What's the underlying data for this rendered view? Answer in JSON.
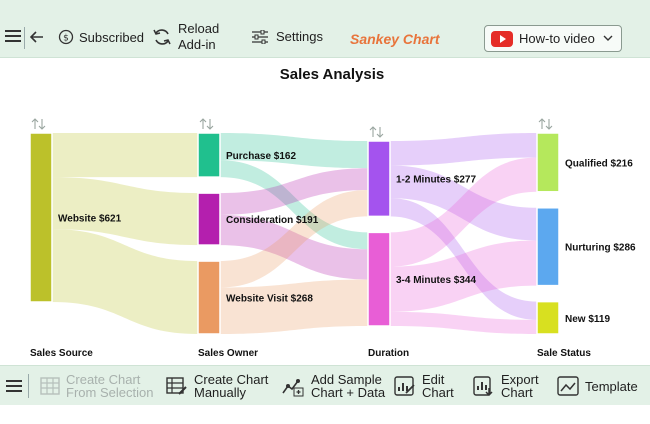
{
  "toolbar": {
    "subscribed_label": "Subscribed",
    "reload_line1": "Reload",
    "reload_line2": "Add-in",
    "settings_label": "Settings",
    "brand": "Sankey Chart",
    "howto_label": "How-to video"
  },
  "chart_data": {
    "type": "sankey",
    "title": "Sales Analysis",
    "stages": [
      "Sales Source",
      "Sales Owner",
      "Duration",
      "Sale Status"
    ],
    "nodes": [
      {
        "name": "Website",
        "value": 621,
        "label": "Website $621",
        "color": "#bcc12a"
      },
      {
        "name": "Purchase",
        "value": 162,
        "label": "Purchase $162",
        "color": "#20c08e"
      },
      {
        "name": "Consideration",
        "value": 191,
        "label": "Consideration $191",
        "color": "#b41fae"
      },
      {
        "name": "Website Visit",
        "value": 268,
        "label": "Website Visit $268",
        "color": "#ea9a62"
      },
      {
        "name": "1-2 Minutes",
        "value": 277,
        "label": "1-2 Minutes $277",
        "color": "#a453ee"
      },
      {
        "name": "3-4 Minutes",
        "value": 344,
        "label": "3-4 Minutes $344",
        "color": "#e85ed6"
      },
      {
        "name": "Qualified",
        "value": 216,
        "label": "Qualified $216",
        "color": "#b5e85c"
      },
      {
        "name": "Nurturing",
        "value": 286,
        "label": "Nurturing $286",
        "color": "#5ca8ef"
      },
      {
        "name": "New",
        "value": 119,
        "label": "New $119",
        "color": "#d8e020"
      }
    ],
    "links": [
      {
        "source": "Website",
        "target": "Purchase",
        "value": 162
      },
      {
        "source": "Website",
        "target": "Consideration",
        "value": 191
      },
      {
        "source": "Website",
        "target": "Website Visit",
        "value": 268
      },
      {
        "source": "Purchase",
        "target": "1-2 Minutes",
        "value": 100
      },
      {
        "source": "Purchase",
        "target": "3-4 Minutes",
        "value": 62
      },
      {
        "source": "Consideration",
        "target": "1-2 Minutes",
        "value": 80
      },
      {
        "source": "Consideration",
        "target": "3-4 Minutes",
        "value": 111
      },
      {
        "source": "Website Visit",
        "target": "1-2 Minutes",
        "value": 97
      },
      {
        "source": "Website Visit",
        "target": "3-4 Minutes",
        "value": 171
      },
      {
        "source": "1-2 Minutes",
        "target": "Qualified",
        "value": 90
      },
      {
        "source": "1-2 Minutes",
        "target": "Nurturing",
        "value": 120
      },
      {
        "source": "1-2 Minutes",
        "target": "New",
        "value": 67
      },
      {
        "source": "3-4 Minutes",
        "target": "Qualified",
        "value": 126
      },
      {
        "source": "3-4 Minutes",
        "target": "Nurturing",
        "value": 166
      },
      {
        "source": "3-4 Minutes",
        "target": "New",
        "value": 52
      }
    ]
  },
  "bottombar": {
    "create_from_selection_line1": "Create Chart",
    "create_from_selection_line2": "From Selection",
    "create_manually_line1": "Create Chart",
    "create_manually_line2": "Manually",
    "add_sample_line1": "Add Sample",
    "add_sample_line2": "Chart + Data",
    "edit_chart_line1": "Edit",
    "edit_chart_line2": "Chart",
    "export_chart_line1": "Export",
    "export_chart_line2": "Chart",
    "template_label": "Template"
  }
}
